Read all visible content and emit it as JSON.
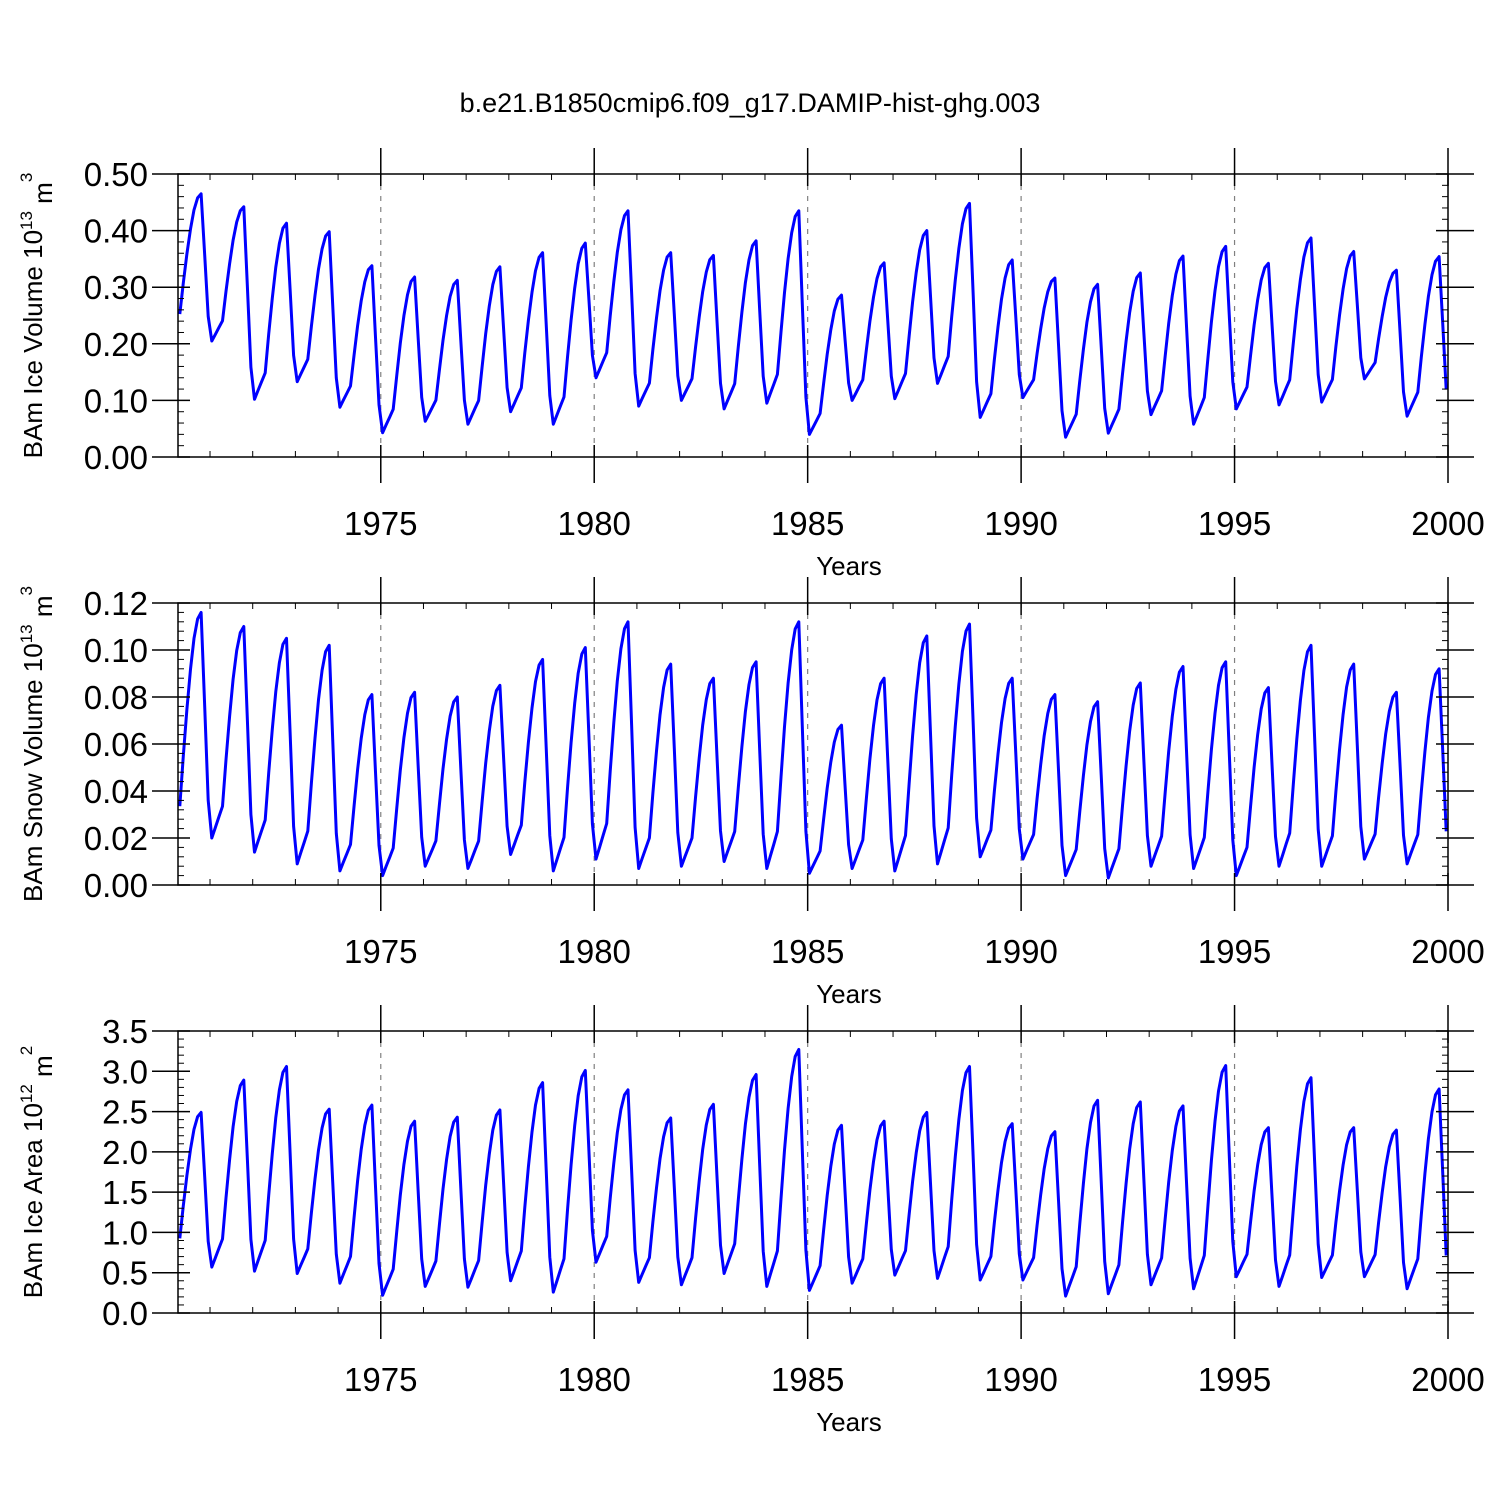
{
  "figure": {
    "title": "b.e21.B1850cmip6.f09_g17.DAMIP-hist-ghg.003",
    "line_color": "#0000ff"
  },
  "chart_data": [
    {
      "type": "line",
      "ylabel": "BAm Ice Volume 10",
      "ylabel_exp": "13",
      "ylabel_unit": " m",
      "ylabel_unit_exp": "3",
      "xlabel": "Years",
      "xlim": [
        1970.25,
        2000
      ],
      "ylim": [
        0,
        0.5
      ],
      "xticks": [
        1975,
        1980,
        1985,
        1990,
        1995,
        2000
      ],
      "xtick_labels": [
        "1975",
        "1980",
        "1985",
        "1990",
        "1995",
        "2000"
      ],
      "yticks": [
        0,
        0.1,
        0.2,
        0.3,
        0.4,
        0.5
      ],
      "ytick_labels": [
        "0.00",
        "0.10",
        "0.20",
        "0.30",
        "0.40",
        "0.50"
      ],
      "grid": "vertical-dashed",
      "series": [
        {
          "name": "BAm Ice Volume",
          "annual_peaks": [
            0.465,
            0.442,
            0.413,
            0.398,
            0.338,
            0.318,
            0.312,
            0.336,
            0.361,
            0.378,
            0.435,
            0.361,
            0.356,
            0.382,
            0.435,
            0.286,
            0.343,
            0.4,
            0.448,
            0.348,
            0.316,
            0.305,
            0.325,
            0.355,
            0.372,
            0.342,
            0.387,
            0.363,
            0.33,
            0.354
          ],
          "annual_troughs": [
            0.215,
            0.205,
            0.102,
            0.133,
            0.088,
            0.043,
            0.063,
            0.058,
            0.08,
            0.058,
            0.14,
            0.09,
            0.1,
            0.085,
            0.095,
            0.04,
            0.1,
            0.103,
            0.13,
            0.07,
            0.105,
            0.035,
            0.042,
            0.075,
            0.058,
            0.085,
            0.092,
            0.097,
            0.138,
            0.072
          ]
        }
      ]
    },
    {
      "type": "line",
      "ylabel": "BAm Snow Volume 10",
      "ylabel_exp": "13",
      "ylabel_unit": " m",
      "ylabel_unit_exp": "3",
      "xlabel": "Years",
      "xlim": [
        1970.25,
        2000
      ],
      "ylim": [
        0,
        0.12
      ],
      "xticks": [
        1975,
        1980,
        1985,
        1990,
        1995,
        2000
      ],
      "xtick_labels": [
        "1975",
        "1980",
        "1985",
        "1990",
        "1995",
        "2000"
      ],
      "yticks": [
        0,
        0.02,
        0.04,
        0.06,
        0.08,
        0.1,
        0.12
      ],
      "ytick_labels": [
        "0.00",
        "0.02",
        "0.04",
        "0.06",
        "0.08",
        "0.10",
        "0.12"
      ],
      "grid": "vertical-dashed",
      "series": [
        {
          "name": "BAm Snow Volume",
          "annual_peaks": [
            0.116,
            0.11,
            0.105,
            0.102,
            0.081,
            0.082,
            0.08,
            0.085,
            0.096,
            0.101,
            0.112,
            0.094,
            0.088,
            0.095,
            0.112,
            0.068,
            0.088,
            0.106,
            0.111,
            0.088,
            0.081,
            0.078,
            0.086,
            0.093,
            0.095,
            0.084,
            0.102,
            0.094,
            0.082,
            0.092
          ],
          "annual_troughs": [
            0.019,
            0.02,
            0.014,
            0.009,
            0.006,
            0.004,
            0.008,
            0.007,
            0.013,
            0.006,
            0.011,
            0.007,
            0.008,
            0.01,
            0.007,
            0.005,
            0.007,
            0.006,
            0.009,
            0.012,
            0.011,
            0.004,
            0.003,
            0.008,
            0.007,
            0.004,
            0.008,
            0.008,
            0.011,
            0.009
          ]
        }
      ]
    },
    {
      "type": "line",
      "ylabel": "BAm Ice Area 10",
      "ylabel_exp": "12",
      "ylabel_unit": " m",
      "ylabel_unit_exp": "2",
      "xlabel": "Years",
      "xlim": [
        1970.25,
        2000
      ],
      "ylim": [
        0,
        3.5
      ],
      "xticks": [
        1975,
        1980,
        1985,
        1990,
        1995,
        2000
      ],
      "xtick_labels": [
        "1975",
        "1980",
        "1985",
        "1990",
        "1995",
        "2000"
      ],
      "yticks": [
        0,
        0.5,
        1,
        1.5,
        2,
        2.5,
        3,
        3.5
      ],
      "ytick_labels": [
        "0.0",
        "0.5",
        "1.0",
        "1.5",
        "2.0",
        "2.5",
        "3.0",
        "3.5"
      ],
      "grid": "vertical-dashed",
      "series": [
        {
          "name": "BAm Ice Area",
          "annual_peaks": [
            2.49,
            2.89,
            3.06,
            2.53,
            2.58,
            2.38,
            2.43,
            2.52,
            2.86,
            3.01,
            2.77,
            2.42,
            2.59,
            2.96,
            3.27,
            2.33,
            2.38,
            2.49,
            3.06,
            2.35,
            2.25,
            2.64,
            2.62,
            2.57,
            3.07,
            2.3,
            2.92,
            2.3,
            2.27,
            2.78
          ],
          "annual_troughs": [
            0.65,
            0.57,
            0.52,
            0.49,
            0.37,
            0.22,
            0.33,
            0.32,
            0.4,
            0.26,
            0.63,
            0.38,
            0.35,
            0.49,
            0.33,
            0.28,
            0.37,
            0.47,
            0.43,
            0.41,
            0.41,
            0.21,
            0.24,
            0.35,
            0.3,
            0.45,
            0.33,
            0.44,
            0.45,
            0.3
          ]
        }
      ]
    }
  ]
}
